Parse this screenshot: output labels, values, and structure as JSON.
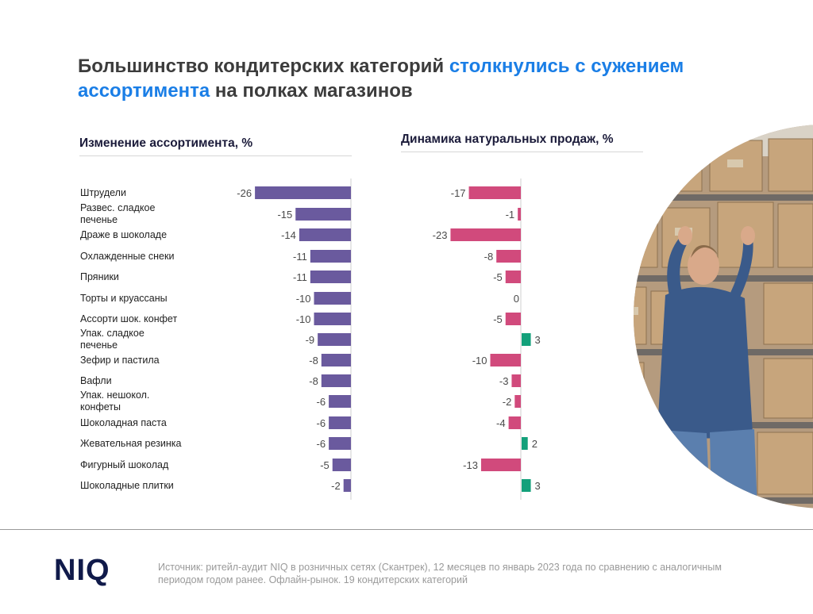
{
  "title": {
    "part1": "Большинство кондитерских категорий ",
    "accent1": "столкнулись с сужением ассортимента",
    "part2": " на полках магазинов"
  },
  "chart_data": [
    {
      "type": "bar",
      "orientation": "horizontal",
      "title": "Изменение ассортимента, %",
      "categories": [
        "Штрудели",
        "Развес. сладкое печенье",
        "Драже в шоколаде",
        "Охлажденные снеки",
        "Пряники",
        "Торты и круассаны",
        "Ассорти шок. конфет",
        "Упак. сладкое печенье",
        "Зефир и пастила",
        "Вафли",
        "Упак. нешокол. конфеты",
        "Шоколадная паста",
        "Жевательная резинка",
        "Фигурный шоколад",
        "Шоколадные плитки"
      ],
      "values": [
        -26,
        -15,
        -14,
        -11,
        -11,
        -10,
        -10,
        -9,
        -8,
        -8,
        -6,
        -6,
        -6,
        -5,
        -2
      ],
      "colors": {
        "negative": "#6a5a9e"
      }
    },
    {
      "type": "bar",
      "orientation": "horizontal",
      "title": "Динамика натуральных продаж, %",
      "categories": [
        "Штрудели",
        "Развес. сладкое печенье",
        "Драже в шоколаде",
        "Охлажденные снеки",
        "Пряники",
        "Торты и круассаны",
        "Ассорти шок. конфет",
        "Упак. сладкое печенье",
        "Зефир и пастила",
        "Вафли",
        "Упак. нешокол. конфеты",
        "Шоколадная паста",
        "Жевательная резинка",
        "Фигурный шоколад",
        "Шоколадные плитки"
      ],
      "values": [
        -17,
        -1,
        -23,
        -8,
        -5,
        0,
        -5,
        3,
        -10,
        -3,
        -2,
        -4,
        2,
        -13,
        3
      ],
      "colors": {
        "negative": "#d14a7c",
        "positive": "#13a07a"
      }
    }
  ],
  "category_lines": [
    [
      "Штрудели"
    ],
    [
      "Развес. сладкое",
      "печенье"
    ],
    [
      "Драже в шоколаде"
    ],
    [
      "Охлажденные снеки"
    ],
    [
      "Пряники"
    ],
    [
      "Торты и круассаны"
    ],
    [
      "Ассорти шок. конфет"
    ],
    [
      "Упак. сладкое",
      "печенье"
    ],
    [
      "Зефир и пастила"
    ],
    [
      "Вафли"
    ],
    [
      "Упак. нешокол.",
      "конфеты"
    ],
    [
      "Шоколадная паста"
    ],
    [
      "Жевательная резинка"
    ],
    [
      "Фигурный шоколад"
    ],
    [
      "Шоколадные плитки"
    ]
  ],
  "logo": "NIQ",
  "source": "Источник: ритейл-аудит NIQ в розничных сетях (Скантрек), 12 месяцев по январь 2023 года по сравнению с аналогичным периодом годом ранее. Офлайн-рынок. 19 кондитерских категорий"
}
